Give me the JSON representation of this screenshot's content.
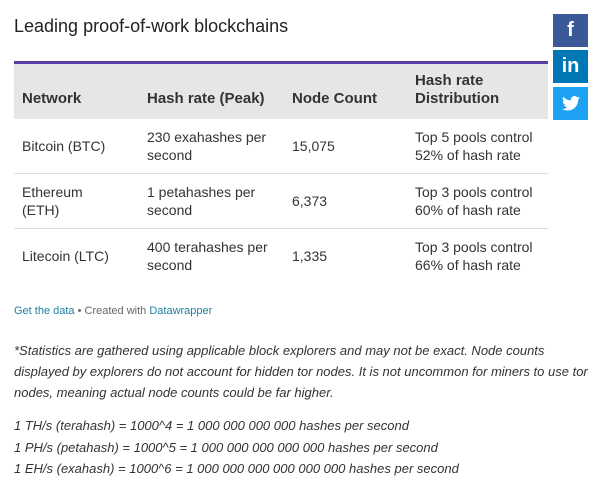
{
  "header": {
    "title": "Leading proof-of-work blockchains"
  },
  "table": {
    "columns": [
      "Network",
      "Hash rate (Peak)",
      "Node Count",
      "Hash rate Distribution"
    ],
    "rows": [
      [
        "Bitcoin (BTC)",
        "230 exahashes per second",
        "15,075",
        "Top 5 pools control 52% of hash rate"
      ],
      [
        "Ethereum (ETH)",
        "1 petahashes per second",
        "6,373",
        "Top 3 pools control 60% of hash rate"
      ],
      [
        "Litecoin (LTC)",
        "400 terahashes per second",
        "1,335",
        "Top 3 pools control 66% of hash rate"
      ]
    ]
  },
  "footer": {
    "data_link": "Get the data",
    "separator": "• Created with",
    "credit_link": "Datawrapper"
  },
  "share": {
    "facebook": "f",
    "linkedin": "in"
  },
  "note": "*Statistics are gathered using applicable block explorers and may not be exact. Node counts displayed by explorers do not account for hidden tor nodes. It is not uncommon for miners to use tor nodes, meaning actual node counts could be far higher.",
  "conversions": [
    "1 TH/s (terahash) = 1000^4 = 1 000 000 000 000 hashes per second",
    "1 PH/s (petahash) = 1000^5 = 1 000 000 000 000 000 hashes per second",
    "1 EH/s (exahash) = 1000^6 = 1 000 000 000 000 000 000 hashes per second"
  ]
}
